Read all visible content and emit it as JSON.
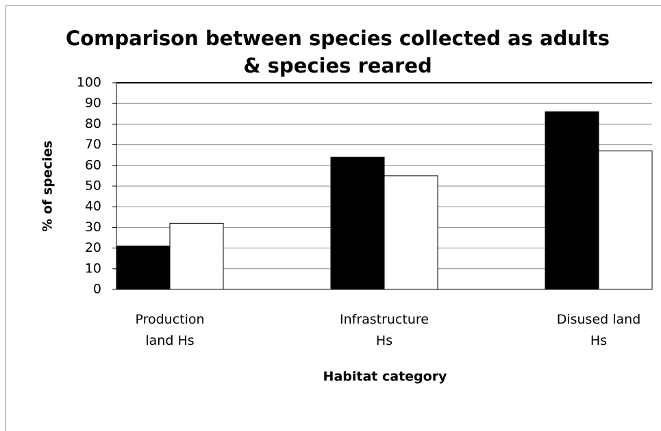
{
  "chart_data": {
    "type": "bar",
    "title": "Comparison between species collected as adults\n& species reared",
    "x_label": "Habitat category",
    "y_label": "% of species",
    "categories": [
      "Production\nland Hs",
      "Infrastructure\nHs",
      "Disused land\nHs"
    ],
    "series": [
      {
        "color": "#000000",
        "values": [
          21,
          64,
          86
        ]
      },
      {
        "color": "#ffffff",
        "values": [
          32,
          55,
          67
        ]
      }
    ],
    "ylim": [
      0,
      100
    ],
    "yticks": [
      0,
      10,
      20,
      30,
      40,
      50,
      60,
      70,
      80,
      90,
      100
    ],
    "grid": true
  }
}
